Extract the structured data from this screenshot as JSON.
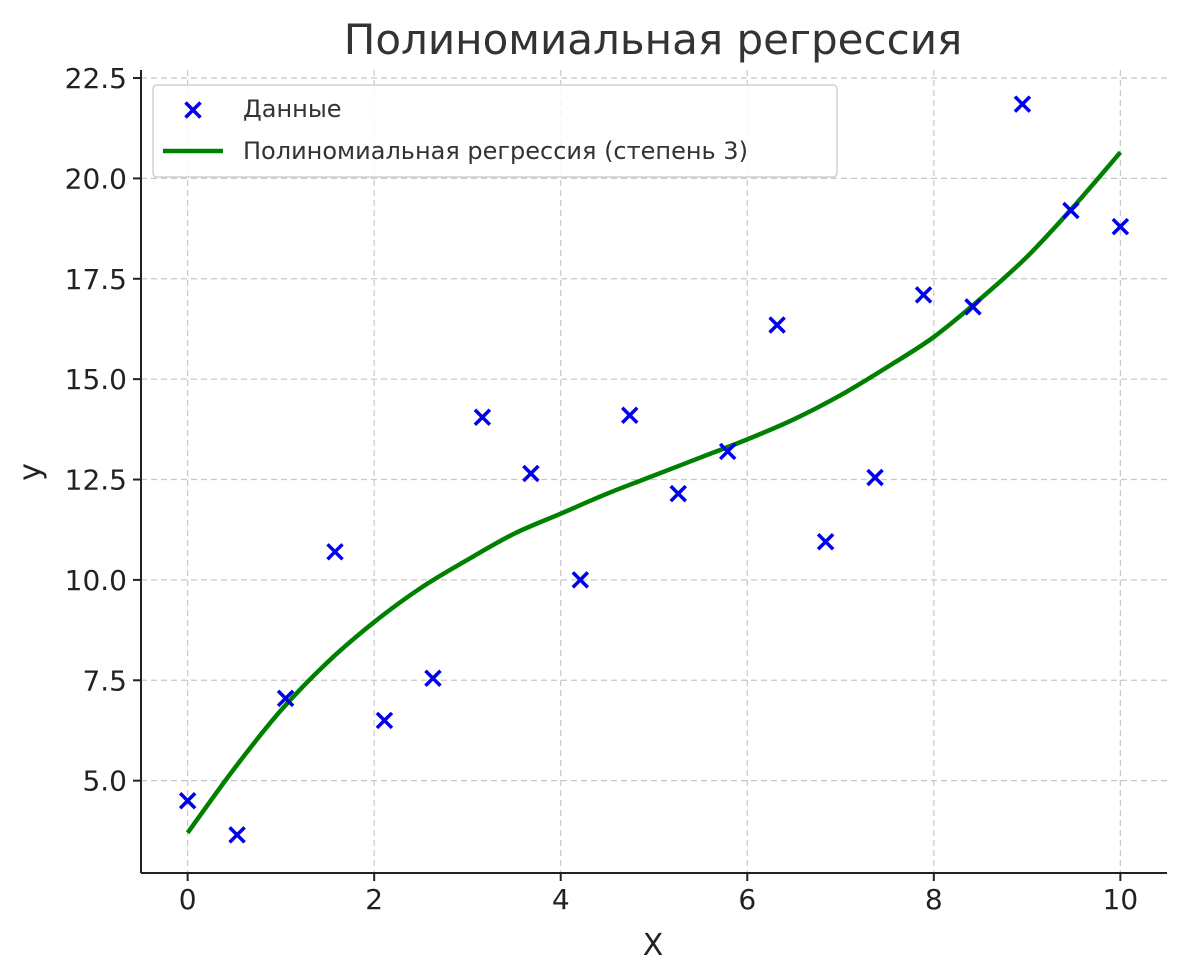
{
  "chart_data": {
    "type": "scatter",
    "title": "Полиномиальная регрессия",
    "xlabel": "X",
    "ylabel": "y",
    "xlim": [
      -0.5,
      10.5
    ],
    "ylim": [
      2.7,
      22.7
    ],
    "x_ticks": [
      0,
      2,
      4,
      6,
      8,
      10
    ],
    "x_tick_labels": [
      "0",
      "2",
      "4",
      "6",
      "8",
      "10"
    ],
    "y_ticks": [
      5.0,
      7.5,
      10.0,
      12.5,
      15.0,
      17.5,
      20.0,
      22.5
    ],
    "y_tick_labels": [
      "5.0",
      "7.5",
      "10.0",
      "12.5",
      "15.0",
      "17.5",
      "20.0",
      "22.5"
    ],
    "grid": true,
    "legend_position": "top-left",
    "series": [
      {
        "name": "Данные",
        "kind": "scatter",
        "marker": "x",
        "color": "#0000ee",
        "x": [
          0.0,
          0.53,
          1.05,
          1.58,
          2.11,
          2.63,
          3.16,
          3.68,
          4.21,
          4.74,
          5.26,
          5.79,
          6.32,
          6.84,
          7.37,
          7.89,
          8.42,
          8.95,
          9.47,
          10.0
        ],
        "y": [
          4.5,
          3.65,
          7.05,
          10.7,
          6.5,
          7.55,
          14.05,
          12.65,
          10.0,
          14.1,
          12.15,
          13.2,
          16.35,
          10.95,
          12.55,
          17.1,
          16.8,
          21.85,
          19.2,
          18.8
        ]
      },
      {
        "name": "Полиномиальная регрессия (степень 3)",
        "kind": "line",
        "color": "#008000",
        "x": [
          0,
          0.5,
          1,
          1.5,
          2,
          2.5,
          3,
          3.5,
          4,
          4.5,
          5,
          5.5,
          6,
          6.5,
          7,
          7.5,
          8,
          8.5,
          9,
          9.5,
          10
        ],
        "y": [
          3.7,
          5.3,
          6.75,
          7.95,
          8.95,
          9.8,
          10.5,
          11.15,
          11.65,
          12.15,
          12.6,
          13.05,
          13.5,
          14.0,
          14.6,
          15.3,
          16.05,
          17.0,
          18.05,
          19.3,
          20.65
        ]
      }
    ]
  }
}
